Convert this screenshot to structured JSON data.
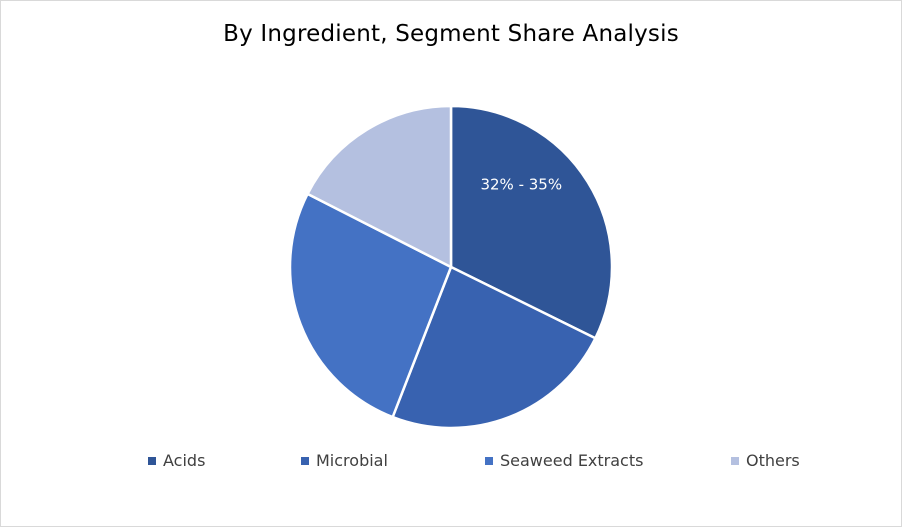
{
  "chart_data": {
    "type": "pie",
    "title": "By Ingredient, Segment Share Analysis",
    "categories": [
      "Acids",
      "Microbial",
      "Seaweed Extracts",
      "Others"
    ],
    "values": [
      32.3,
      23.6,
      26.6,
      17.5
    ],
    "colors": [
      "#2f5597",
      "#3862b0",
      "#4472c4",
      "#b4c0e0"
    ],
    "slice_labels": [
      "32% - 35%",
      "",
      "",
      ""
    ],
    "legend_position": "bottom"
  }
}
